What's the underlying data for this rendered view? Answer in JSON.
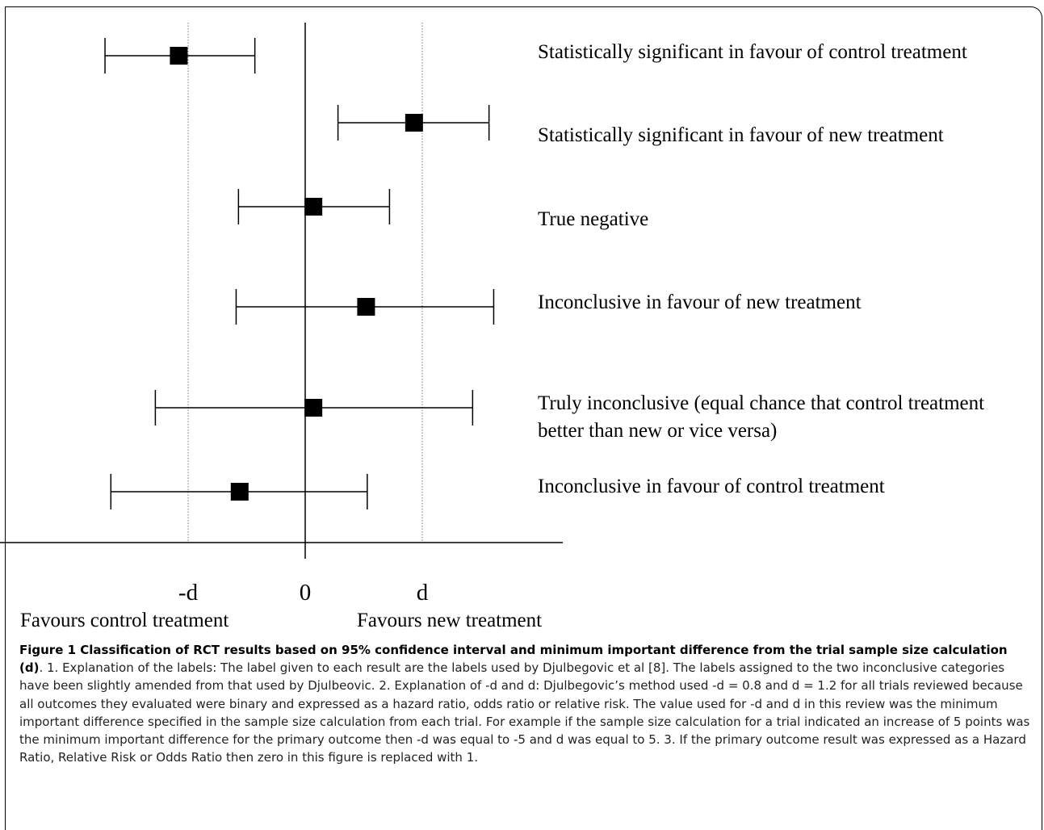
{
  "chart_data": {
    "type": "forest",
    "x_ticks": [
      {
        "label": "-d",
        "value": -1
      },
      {
        "label": "0",
        "value": 0
      },
      {
        "label": "d",
        "value": 1
      }
    ],
    "xlim": [
      -2.66,
      2.2
    ],
    "x_labels": {
      "left": "Favours control treatment",
      "right": "Favours new treatment"
    },
    "reference_lines": [
      {
        "value": -1,
        "style": "dotted"
      },
      {
        "value": 0,
        "style": "solid"
      },
      {
        "value": 1,
        "style": "dotted"
      }
    ],
    "rows": [
      {
        "label": "Statistically significant in favour of control treatment",
        "point": -1.08,
        "lower": -1.71,
        "upper": -0.43
      },
      {
        "label": "Statistically significant in favour of new treatment",
        "point": 0.93,
        "lower": 0.28,
        "upper": 1.57
      },
      {
        "label": "True negative",
        "point": 0.07,
        "lower": -0.57,
        "upper": 0.72
      },
      {
        "label": "Inconclusive in favour of new treatment",
        "point": 0.52,
        "lower": -0.59,
        "upper": 1.61
      },
      {
        "label": "Truly inconclusive (equal chance that control treatment better than new or vice versa)",
        "label_lines": [
          "Truly inconclusive (equal chance that control treatment",
          "better than new or vice versa)"
        ],
        "point": 0.07,
        "lower": -1.28,
        "upper": 1.43
      },
      {
        "label": "Inconclusive in favour of control treatment",
        "point": -0.56,
        "lower": -1.66,
        "upper": 0.53
      }
    ]
  },
  "caption": {
    "title": "Figure 1 Classification of RCT results based on 95% confidence interval and minimum important difference from the trial sample size calculation (d)",
    "body": ". 1. Explanation of the labels: The label given to each result are the labels used by Djulbegovic et al [8]. The labels assigned to the two inconclusive categories have been slightly amended from that used by Djulbeovic.  2. Explanation of -d and d: Djulbegovic’s method used -d = 0.8 and d = 1.2 for all trials reviewed because all outcomes they evaluated were binary and expressed as a hazard ratio, odds ratio or relative risk. The value used for -d and d in this review was the minimum important difference specified in the sample size calculation from each trial. For example if the sample size calculation for a trial indicated an increase of 5 points was the minimum important difference for the primary outcome then -d was equal to -5 and d was equal to 5.  3. If the primary outcome result was expressed as a Hazard Ratio, Relative Risk or Odds Ratio then zero in this figure is replaced with 1."
  }
}
